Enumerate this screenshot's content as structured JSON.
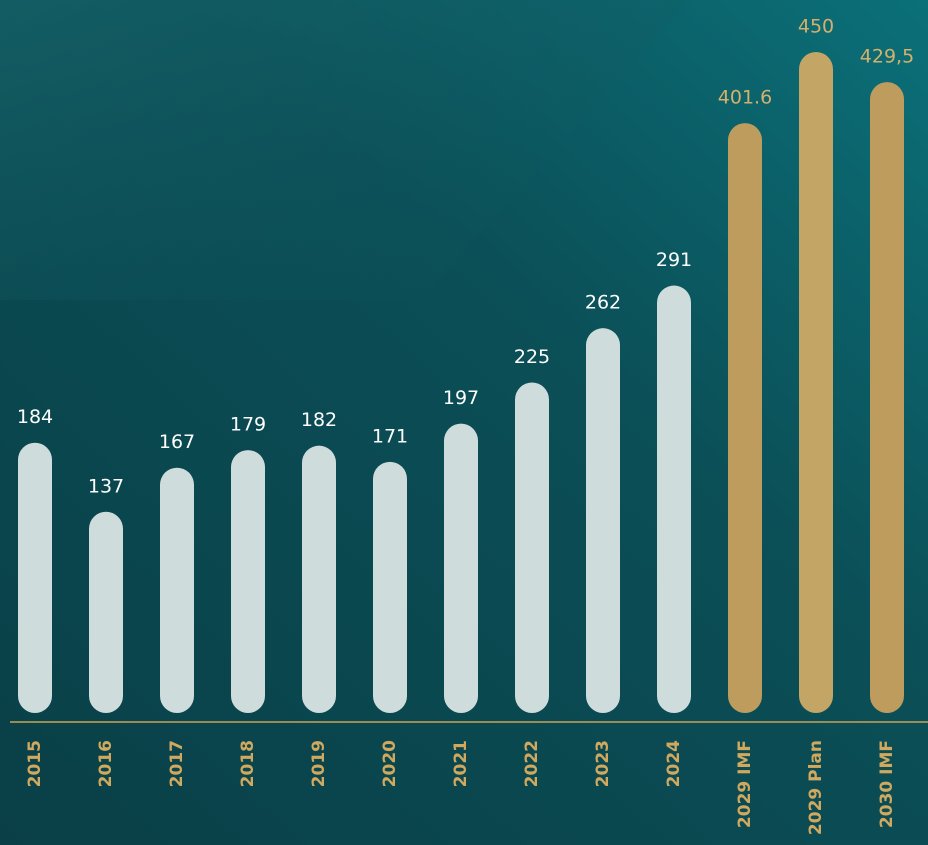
{
  "chart_data": {
    "type": "bar",
    "categories": [
      "2015",
      "2016",
      "2017",
      "2018",
      "2019",
      "2020",
      "2021",
      "2022",
      "2023",
      "2024",
      "2029 IMF",
      "2029 Plan",
      "2030 IMF"
    ],
    "values": [
      184,
      137,
      167,
      179,
      182,
      171,
      197,
      225,
      262,
      291,
      401.6,
      450,
      429.5
    ],
    "value_labels": [
      "184",
      "137",
      "167",
      "179",
      "182",
      "171",
      "197",
      "225",
      "262",
      "291",
      "401.6",
      "450",
      "429,5"
    ],
    "colors": [
      "#cfdcdc",
      "#cfdcdc",
      "#cfdcdc",
      "#cfdcdc",
      "#cfdcdc",
      "#cfdcdc",
      "#cfdcdc",
      "#cfdcdc",
      "#cfdcdc",
      "#cfdcdc",
      "#bd9c5e",
      "#c3a565",
      "#bd9c5e"
    ],
    "label_colors": [
      "#ffffff",
      "#ffffff",
      "#ffffff",
      "#ffffff",
      "#ffffff",
      "#ffffff",
      "#ffffff",
      "#ffffff",
      "#ffffff",
      "#ffffff",
      "#d5b06c",
      "#d5b06c",
      "#d5b06c"
    ],
    "category_color": "#d0a85e"
  }
}
